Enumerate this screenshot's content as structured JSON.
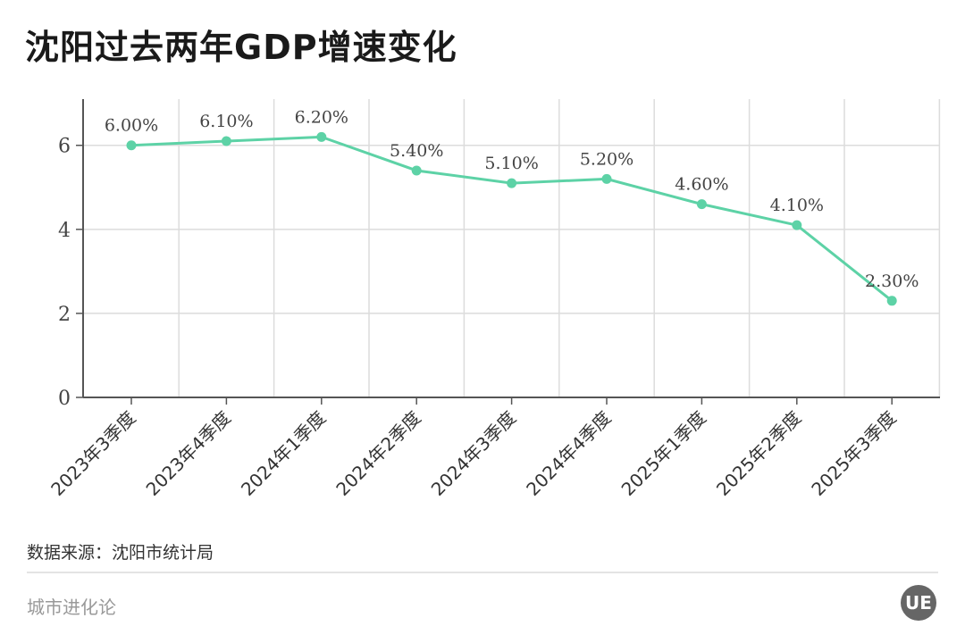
{
  "title": "沈阳过去两年GDP增速变化",
  "source": "数据来源：沈阳市统计局",
  "brand": "城市进化论",
  "logo_text": "UE",
  "colors": {
    "line": "#5dd2a6",
    "grid": "#dcdcdc",
    "axis": "#555555"
  },
  "chart_data": {
    "type": "line",
    "categories": [
      "2023年3季度",
      "2023年4季度",
      "2024年1季度",
      "2024年2季度",
      "2024年3季度",
      "2024年4季度",
      "2025年1季度",
      "2025年2季度",
      "2025年3季度"
    ],
    "values": [
      6.0,
      6.1,
      6.2,
      5.4,
      5.1,
      5.2,
      4.6,
      4.1,
      2.3
    ],
    "data_labels": [
      "6.00%",
      "6.10%",
      "6.20%",
      "5.40%",
      "5.10%",
      "5.20%",
      "4.60%",
      "4.10%",
      "2.30%"
    ],
    "yticks": [
      0,
      2,
      4,
      6
    ],
    "ylim": [
      0,
      7.1
    ],
    "grid": true,
    "legend": "none"
  }
}
